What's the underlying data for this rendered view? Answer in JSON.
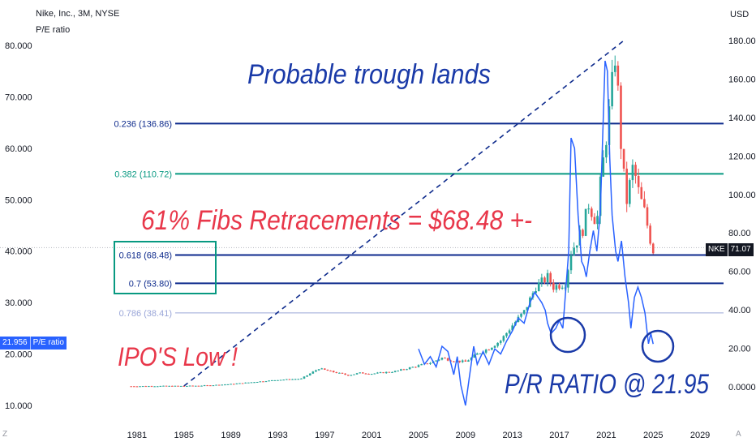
{
  "header": {
    "title": "Nike, Inc., 3M, NYSE",
    "subtitle": "P/E ratio",
    "currency": "USD"
  },
  "corner_labels": {
    "left": "Z",
    "right": "A"
  },
  "tags": {
    "pe_value": "21.956",
    "pe_name": "P/E ratio",
    "price_symbol": "NKE",
    "price_value": "71.07"
  },
  "annotations": {
    "headline": "Probable trough lands",
    "fibs": "61% Fibs Retracements = $68.48 +-",
    "ipo": "IPO'S Low !",
    "ratio": "P/R RATIO @ 21.95"
  },
  "colors": {
    "candle_up": "#26a69a",
    "candle_down": "#ef5350",
    "pe_line": "#2962ff",
    "fib_dark": "#0d2a8c",
    "fib_teal": "#089981",
    "fib_light": "#9aa6d8",
    "annotation_blue": "#1a3aa8",
    "annotation_red": "#e8374a"
  },
  "chart_data": {
    "type": "line",
    "x_ticks": [
      "1981",
      "1985",
      "1989",
      "1993",
      "1997",
      "2001",
      "2005",
      "2009",
      "2013",
      "2017",
      "2021",
      "2025",
      "2029"
    ],
    "x_range": [
      1979,
      2031
    ],
    "left_axis": {
      "name": "P/E ratio",
      "ticks": [
        "80.000",
        "70.000",
        "60.000",
        "50.000",
        "40.000",
        "30.000",
        "20.000",
        "10.000"
      ],
      "range": [
        5,
        82
      ]
    },
    "right_axis": {
      "name": "USD",
      "ticks": [
        "180.00",
        "160.00",
        "140.00",
        "120.00",
        "100.00",
        "80.00",
        "60.00",
        "40.00",
        "20.00",
        "0.0000"
      ],
      "range": [
        -2,
        185
      ]
    },
    "fib_levels": [
      {
        "label": "0.236 (136.86)",
        "price": 136.86,
        "color": "fib_dark"
      },
      {
        "label": "0.382 (110.72)",
        "price": 110.72,
        "color": "fib_teal"
      },
      {
        "label": "0.618 (68.48)",
        "price": 68.48,
        "color": "fib_dark"
      },
      {
        "label": "0.7 (53.80)",
        "price": 53.8,
        "color": "fib_dark"
      },
      {
        "label": "0.786 (38.41)",
        "price": 38.41,
        "color": "fib_light"
      }
    ],
    "price_series": {
      "name": "NKE",
      "points": [
        [
          1980.5,
          0.3
        ],
        [
          1983,
          0.4
        ],
        [
          1985,
          0.4
        ],
        [
          1987,
          0.7
        ],
        [
          1989,
          1.4
        ],
        [
          1991,
          2.5
        ],
        [
          1993,
          3.6
        ],
        [
          1995,
          4.2
        ],
        [
          1996.5,
          9.5
        ],
        [
          1997.5,
          8.0
        ],
        [
          1999,
          6.0
        ],
        [
          2000,
          7.2
        ],
        [
          2001,
          6.8
        ],
        [
          2003,
          8.0
        ],
        [
          2005,
          11.0
        ],
        [
          2006,
          12.5
        ],
        [
          2007,
          15.0
        ],
        [
          2008,
          13.5
        ],
        [
          2009,
          13.0
        ],
        [
          2010,
          17.0
        ],
        [
          2011,
          20.0
        ],
        [
          2012,
          24.0
        ],
        [
          2013,
          32.0
        ],
        [
          2014,
          39.0
        ],
        [
          2015,
          52.0
        ],
        [
          2016,
          57.0
        ],
        [
          2016.5,
          52.0
        ],
        [
          2017.5,
          54.0
        ],
        [
          2018,
          70.0
        ],
        [
          2019,
          82.0
        ],
        [
          2019.5,
          95.0
        ],
        [
          2020.2,
          85.0
        ],
        [
          2020.5,
          105.0
        ],
        [
          2021.3,
          145.0
        ],
        [
          2021.8,
          175.0
        ],
        [
          2022.2,
          130.0
        ],
        [
          2022.7,
          95.0
        ],
        [
          2023.3,
          115.0
        ],
        [
          2023.8,
          100.0
        ],
        [
          2024.3,
          90.0
        ],
        [
          2024.7,
          78.0
        ],
        [
          2025.0,
          71.07
        ]
      ]
    },
    "pe_series": {
      "name": "P/E ratio",
      "points": [
        [
          2005.0,
          21.0
        ],
        [
          2005.5,
          18.0
        ],
        [
          2006.0,
          19.5
        ],
        [
          2006.5,
          17.5
        ],
        [
          2007.0,
          21.5
        ],
        [
          2007.5,
          20.5
        ],
        [
          2008.0,
          16.0
        ],
        [
          2008.3,
          19.5
        ],
        [
          2008.6,
          14.0
        ],
        [
          2009.0,
          10.0
        ],
        [
          2009.3,
          15.0
        ],
        [
          2009.7,
          21.5
        ],
        [
          2010.0,
          18.0
        ],
        [
          2010.5,
          20.5
        ],
        [
          2011.0,
          18.0
        ],
        [
          2011.5,
          21.0
        ],
        [
          2012.0,
          20.0
        ],
        [
          2012.5,
          22.5
        ],
        [
          2013.0,
          24.5
        ],
        [
          2013.5,
          27.0
        ],
        [
          2014.0,
          26.0
        ],
        [
          2014.5,
          30.0
        ],
        [
          2014.9,
          32.0
        ],
        [
          2015.2,
          31.0
        ],
        [
          2015.5,
          30.0
        ],
        [
          2015.8,
          28.5
        ],
        [
          2016.0,
          26.0
        ],
        [
          2016.3,
          24.0
        ],
        [
          2016.7,
          25.0
        ],
        [
          2017.0,
          26.5
        ],
        [
          2017.3,
          25.0
        ],
        [
          2017.8,
          40.0
        ],
        [
          2018.0,
          62.0
        ],
        [
          2018.3,
          60.0
        ],
        [
          2018.6,
          47.0
        ],
        [
          2018.9,
          38.0
        ],
        [
          2019.1,
          37.0
        ],
        [
          2019.3,
          35.0
        ],
        [
          2019.6,
          40.0
        ],
        [
          2019.9,
          44.0
        ],
        [
          2020.2,
          40.0
        ],
        [
          2020.5,
          48.0
        ],
        [
          2020.9,
          77.0
        ],
        [
          2021.1,
          75.0
        ],
        [
          2021.3,
          58.0
        ],
        [
          2021.5,
          47.0
        ],
        [
          2021.8,
          40.0
        ],
        [
          2022.0,
          38.0
        ],
        [
          2022.3,
          42.0
        ],
        [
          2022.6,
          35.0
        ],
        [
          2022.9,
          30.0
        ],
        [
          2023.1,
          25.0
        ],
        [
          2023.4,
          31.0
        ],
        [
          2023.7,
          33.0
        ],
        [
          2024.0,
          31.0
        ],
        [
          2024.3,
          28.0
        ],
        [
          2024.6,
          22.0
        ],
        [
          2024.8,
          24.0
        ],
        [
          2025.0,
          21.956
        ]
      ]
    },
    "dashed_trendline": {
      "from": [
        1985,
        0.4
      ],
      "to": [
        2022.5,
        180
      ]
    }
  }
}
